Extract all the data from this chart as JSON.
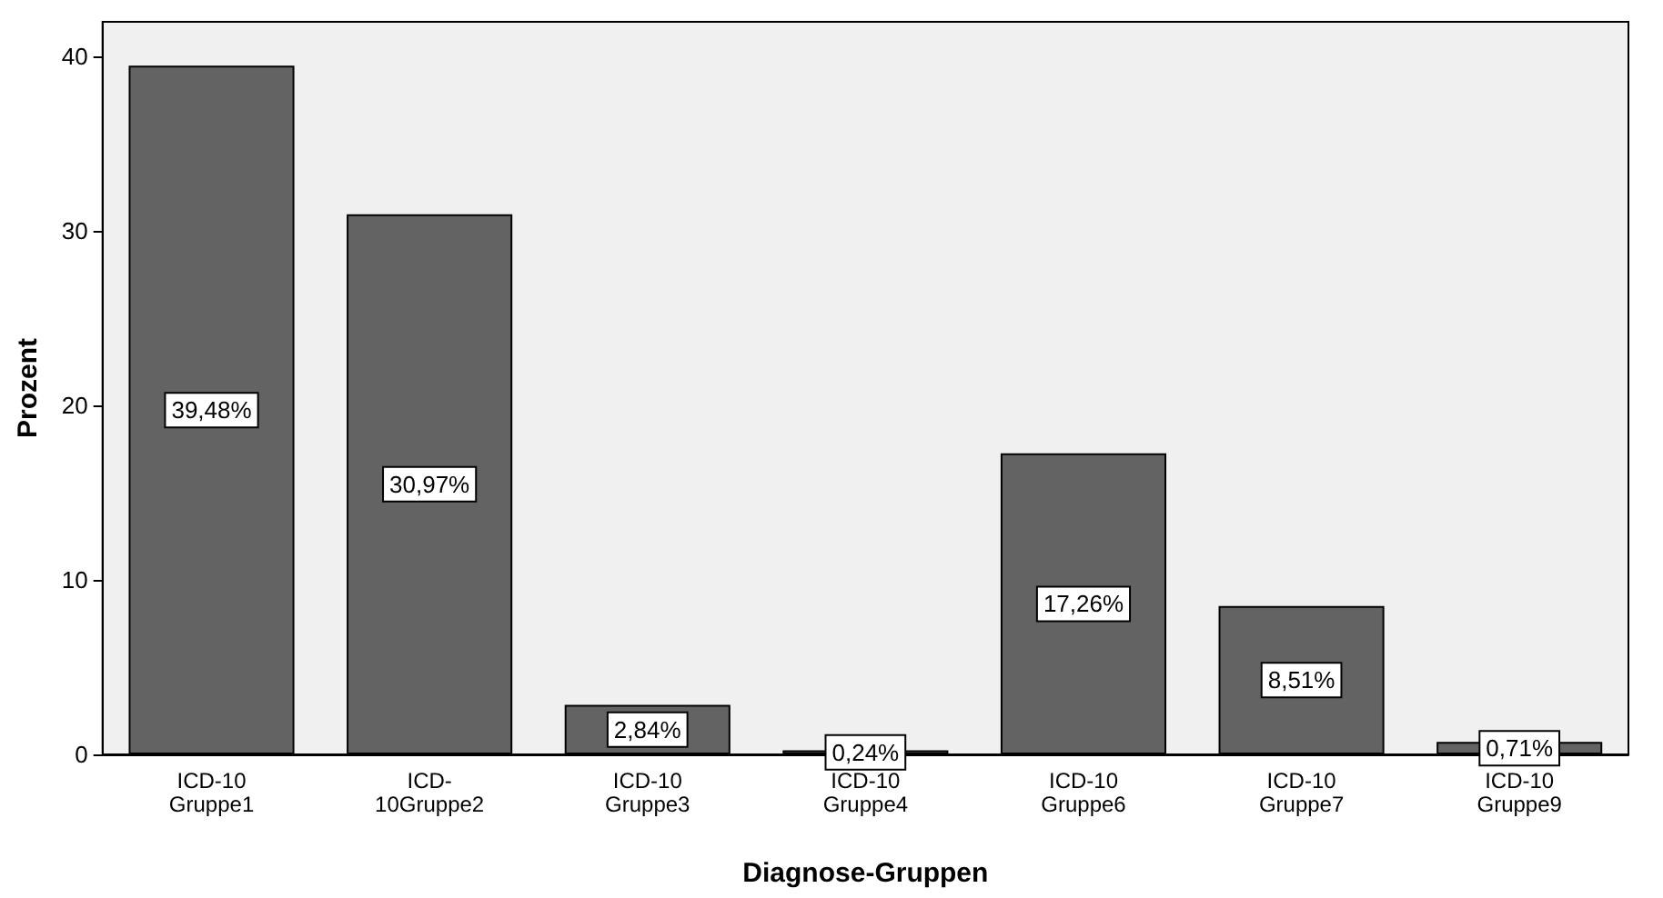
{
  "chart_data": {
    "type": "bar",
    "xlabel": "Diagnose-Gruppen",
    "ylabel": "Prozent",
    "categories": [
      "ICD-10 Gruppe1",
      "ICD-10Gruppe2",
      "ICD-10 Gruppe3",
      "ICD-10 Gruppe4",
      "ICD-10 Gruppe6",
      "ICD-10 Gruppe7",
      "ICD-10 Gruppe9"
    ],
    "values": [
      39.48,
      30.97,
      2.84,
      0.24,
      17.26,
      8.51,
      0.71
    ],
    "value_labels": [
      "39,48%",
      "30,97%",
      "2,84%",
      "0,24%",
      "17,26%",
      "8,51%",
      "0,71%"
    ],
    "color": "#636363",
    "ylim": [
      0,
      42
    ],
    "yticks": [
      0,
      10,
      20,
      30,
      40
    ],
    "grid": false
  }
}
